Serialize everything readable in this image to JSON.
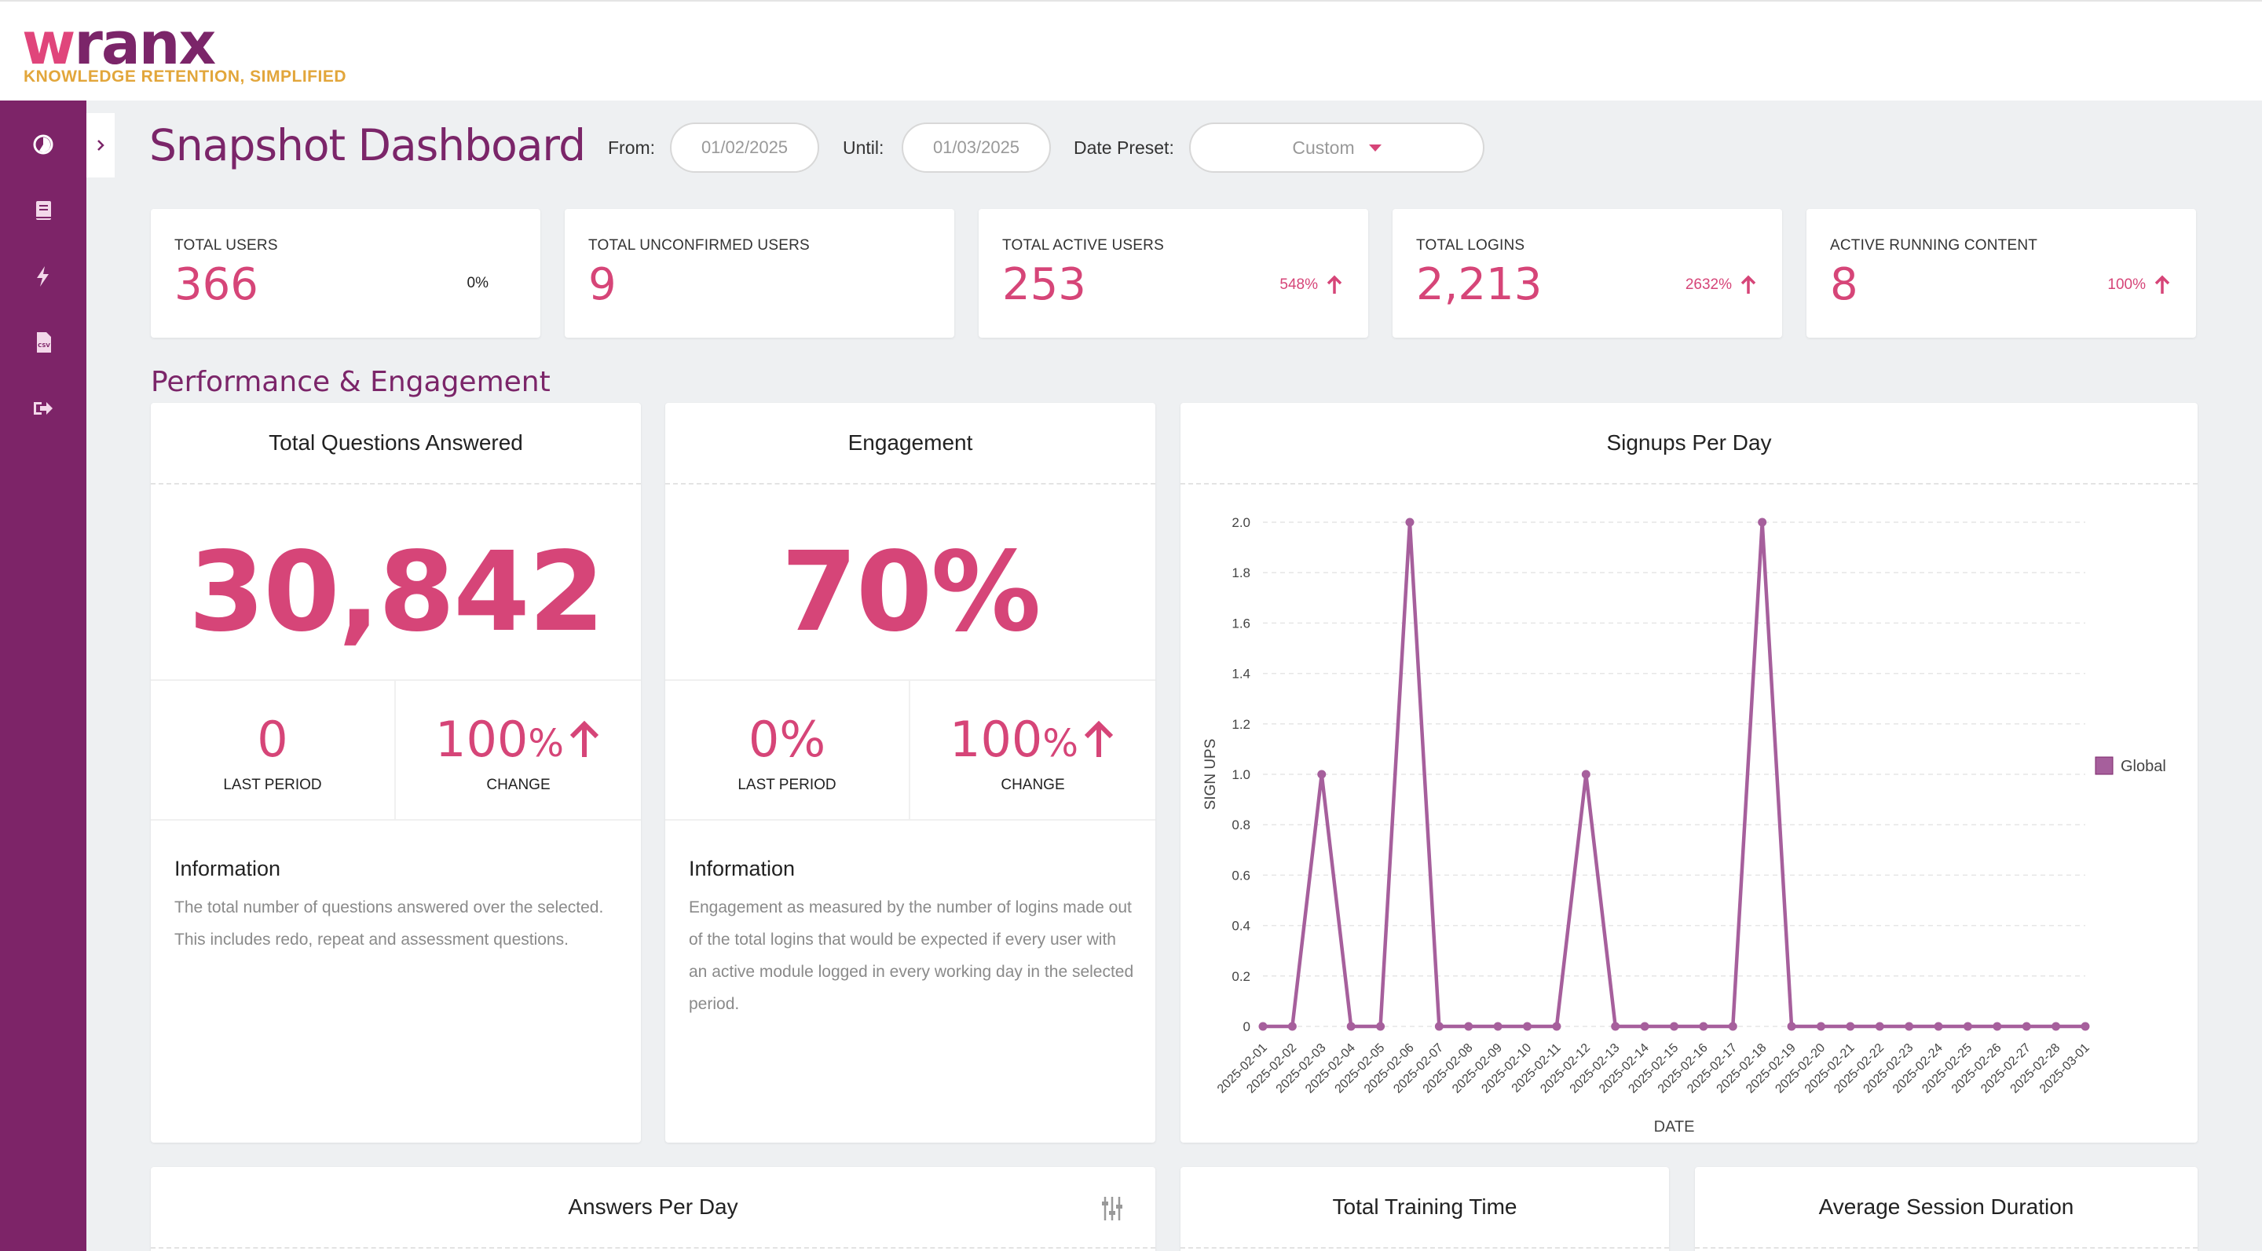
{
  "brand": {
    "name_prefix": "w",
    "name_rest": "ranx",
    "tagline": "KNOWLEDGE RETENTION, SIMPLIFIED"
  },
  "colors": {
    "primary": "#7b2569",
    "accent": "#d64578",
    "sidebar": "#7d2468",
    "tagline": "#e2a63b"
  },
  "sidebar": {
    "items": [
      {
        "icon": "dashboard-icon"
      },
      {
        "icon": "book-icon"
      },
      {
        "icon": "lightning-icon"
      },
      {
        "icon": "csv-file-icon"
      },
      {
        "icon": "logout-icon"
      }
    ]
  },
  "header": {
    "title": "Snapshot Dashboard",
    "from_label": "From:",
    "from_value": "01/02/2025",
    "until_label": "Until:",
    "until_value": "01/03/2025",
    "preset_label": "Date Preset:",
    "preset_value": "Custom"
  },
  "stats": [
    {
      "label": "TOTAL USERS",
      "value": "366",
      "change": "0%",
      "trend": "none"
    },
    {
      "label": "TOTAL UNCONFIRMED USERS",
      "value": "9",
      "change": "",
      "trend": "none"
    },
    {
      "label": "TOTAL ACTIVE USERS",
      "value": "253",
      "change": "548%",
      "trend": "up"
    },
    {
      "label": "TOTAL LOGINS",
      "value": "2,213",
      "change": "2632%",
      "trend": "up"
    },
    {
      "label": "ACTIVE RUNNING CONTENT",
      "value": "8",
      "change": "100%",
      "trend": "up"
    }
  ],
  "section_title": "Performance & Engagement",
  "questions_panel": {
    "title": "Total Questions Answered",
    "big_value": "30,842",
    "last_period_value": "0",
    "last_period_label": "LAST PERIOD",
    "change_value": "100",
    "change_unit": "%",
    "change_label": "CHANGE",
    "info_title": "Information",
    "info_text": "The total number of questions answered over the selected. This includes redo, repeat and assessment questions."
  },
  "engagement_panel": {
    "title": "Engagement",
    "big_value": "70%",
    "last_period_value": "0",
    "last_period_unit": "%",
    "last_period_label": "LAST PERIOD",
    "change_value": "100",
    "change_unit": "%",
    "change_label": "CHANGE",
    "info_title": "Information",
    "info_text": "Engagement as measured by the number of logins made out of the total logins that would be expected if every user with an active module logged in every working day in the selected period."
  },
  "signups_panel": {
    "title": "Signups Per Day"
  },
  "chart_data": {
    "type": "line",
    "title": "Signups Per Day",
    "xlabel": "DATE",
    "ylabel": "SIGN UPS",
    "ylim": [
      0,
      2.0
    ],
    "yticks": [
      "0",
      "0.2",
      "0.4",
      "0.6",
      "0.8",
      "1.0",
      "1.2",
      "1.4",
      "1.6",
      "1.8",
      "2.0"
    ],
    "x": [
      "2025-02-01",
      "2025-02-02",
      "2025-02-03",
      "2025-02-04",
      "2025-02-05",
      "2025-02-06",
      "2025-02-07",
      "2025-02-08",
      "2025-02-09",
      "2025-02-10",
      "2025-02-11",
      "2025-02-12",
      "2025-02-13",
      "2025-02-14",
      "2025-02-15",
      "2025-02-16",
      "2025-02-17",
      "2025-02-18",
      "2025-02-19",
      "2025-02-20",
      "2025-02-21",
      "2025-02-22",
      "2025-02-23",
      "2025-02-24",
      "2025-02-25",
      "2025-02-26",
      "2025-02-27",
      "2025-02-28",
      "2025-03-01"
    ],
    "series": [
      {
        "name": "Global",
        "color": "#a65f9c",
        "values": [
          0,
          0,
          1,
          0,
          0,
          2,
          0,
          0,
          0,
          0,
          0,
          1,
          0,
          0,
          0,
          0,
          0,
          2,
          0,
          0,
          0,
          0,
          0,
          0,
          0,
          0,
          0,
          0,
          0
        ]
      }
    ],
    "legend": "right",
    "grid": true
  },
  "bottom_panels": [
    {
      "title": "Answers Per Day"
    },
    {
      "title": "Total Training Time"
    },
    {
      "title": "Average Session Duration"
    }
  ]
}
